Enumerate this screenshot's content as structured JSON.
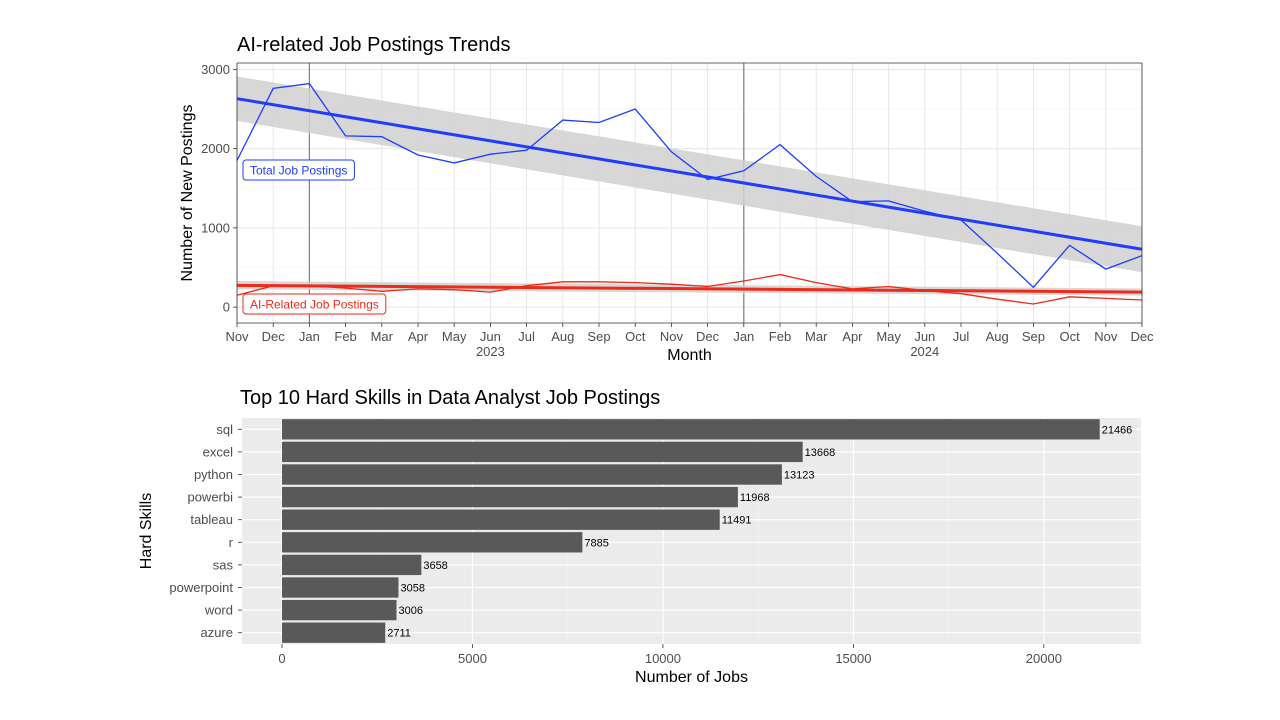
{
  "colors": {
    "total": "#1f3cff",
    "ai": "#ee2a1a",
    "bar": "#595959",
    "panel_bg": "#ebebeb",
    "grid_major": "#e6e6e6",
    "ribbon": "#d0d0d0",
    "vline": "#7f7f7f"
  },
  "chart_data": [
    {
      "type": "line",
      "title": "AI-related Job Postings Trends",
      "xlabel": "Month",
      "ylabel": "Number of New Postings",
      "background": "white",
      "grid": true,
      "ylim": [
        -200,
        3080
      ],
      "x": [
        "Nov",
        "Dec",
        "Jan",
        "Feb",
        "Mar",
        "Apr",
        "May",
        "Jun",
        "Jul",
        "Aug",
        "Sep",
        "Oct",
        "Nov",
        "Dec",
        "Jan",
        "Feb",
        "Mar",
        "Apr",
        "May",
        "Jun",
        "Jul",
        "Aug",
        "Sep",
        "Oct",
        "Nov",
        "Dec"
      ],
      "x_year_labels": [
        {
          "index": 7,
          "label": "2023"
        },
        {
          "index": 19,
          "label": "2024"
        }
      ],
      "y_ticks": [
        0,
        1000,
        2000,
        3000
      ],
      "y_tick_labels": [
        "0",
        "1000",
        "2000",
        "3000"
      ],
      "vlines_at_index": [
        2,
        14
      ],
      "series": [
        {
          "name": "Total Job Postings",
          "color_key": "total",
          "values": [
            1850,
            2760,
            2820,
            2160,
            2150,
            1920,
            1820,
            1930,
            1980,
            2360,
            2330,
            2500,
            1960,
            1610,
            1720,
            2050,
            1650,
            1330,
            1340,
            1210,
            1100,
            680,
            250,
            780,
            480,
            650
          ],
          "trend": {
            "start": 2630,
            "end": 730,
            "band_start": [
              2350,
              2910
            ],
            "band_end": [
              440,
              1020
            ]
          }
        },
        {
          "name": "AI-Related Job Postings",
          "color_key": "ai",
          "values": [
            150,
            270,
            270,
            240,
            200,
            230,
            220,
            190,
            270,
            320,
            320,
            310,
            290,
            260,
            330,
            410,
            310,
            230,
            260,
            210,
            170,
            100,
            40,
            130,
            110,
            90
          ],
          "trend": {
            "start": 275,
            "end": 190,
            "band_start": [
              225,
              330
            ],
            "band_end": [
              145,
              235
            ]
          }
        }
      ]
    },
    {
      "type": "bar",
      "orientation": "horizontal",
      "title": "Top 10 Hard Skills in Data Analyst Job Postings",
      "xlabel": "Number of Jobs",
      "ylabel": "Hard Skills",
      "categories": [
        "sql",
        "excel",
        "python",
        "powerbi",
        "tableau",
        "r",
        "sas",
        "powerpoint",
        "word",
        "azure"
      ],
      "values": [
        21466,
        13668,
        13123,
        11968,
        11491,
        7885,
        3658,
        3058,
        3006,
        2711
      ],
      "x_ticks": [
        0,
        5000,
        10000,
        15000,
        20000
      ],
      "x_tick_labels": [
        "0",
        "5000",
        "10000",
        "15000",
        "20000"
      ],
      "xlim": [
        -1050,
        22550
      ],
      "grid": true
    }
  ]
}
